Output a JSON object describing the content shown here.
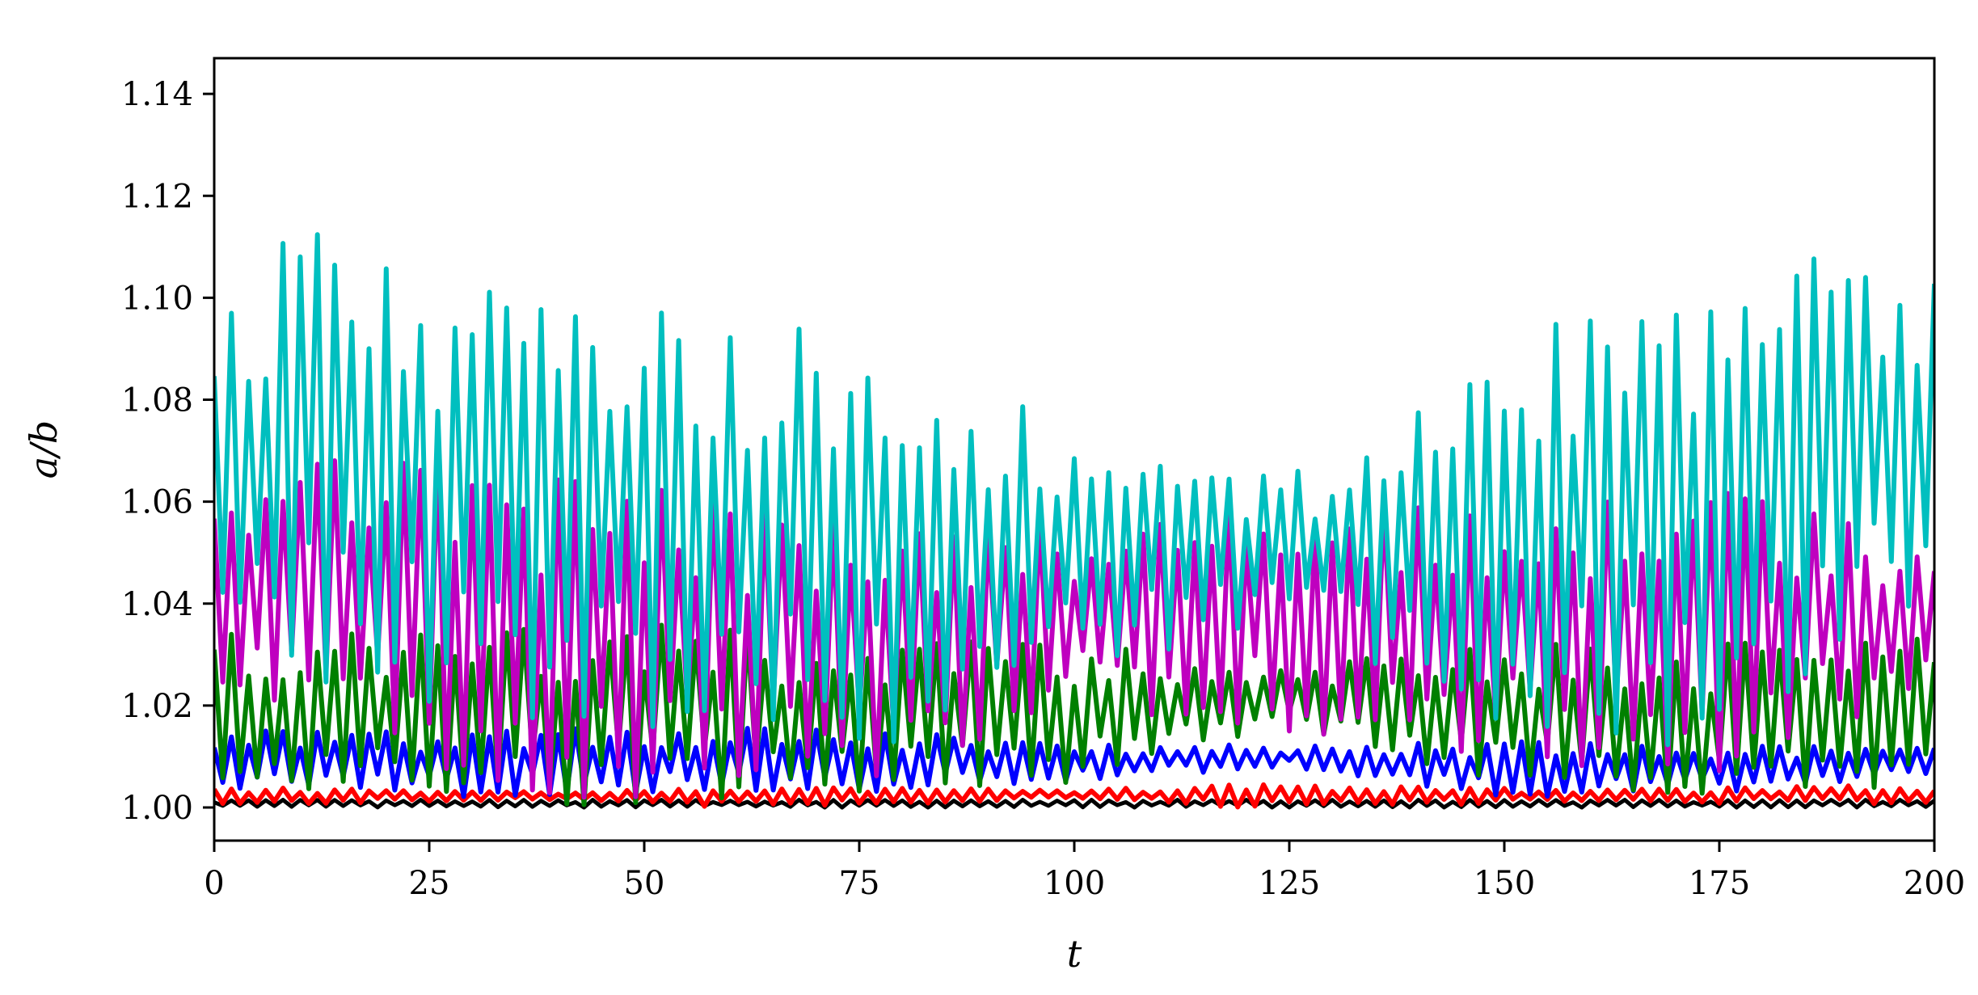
{
  "chart_data": {
    "type": "line",
    "title": "",
    "xlabel": "t",
    "ylabel": "a/b",
    "xlim": [
      0,
      200
    ],
    "ylim": [
      0.9935,
      1.147
    ],
    "xticks": [
      0,
      25,
      50,
      75,
      100,
      125,
      150,
      175,
      200
    ],
    "yticks": [
      1.0,
      1.02,
      1.04,
      1.06,
      1.08,
      1.1,
      1.12,
      1.14
    ],
    "xtick_labels": [
      "0",
      "25",
      "50",
      "75",
      "100",
      "125",
      "150",
      "175",
      "200"
    ],
    "ytick_labels": [
      "1.00",
      "1.02",
      "1.04",
      "1.06",
      "1.08",
      "1.10",
      "1.12",
      "1.14"
    ],
    "grid": false,
    "legend": "none",
    "sample_step": 1,
    "series": [
      {
        "color": "#000000",
        "envelope": [
          [
            0,
            1.0,
            1.0015
          ],
          [
            200,
            1.0,
            1.0015
          ]
        ]
      },
      {
        "color": "#ff0000",
        "envelope": [
          [
            0,
            1.0005,
            1.004
          ],
          [
            40,
            1.0015,
            1.003
          ],
          [
            60,
            1.0,
            1.004
          ],
          [
            100,
            1.0015,
            1.0035
          ],
          [
            120,
            1.0,
            1.0045
          ],
          [
            160,
            1.001,
            1.0035
          ],
          [
            200,
            1.0005,
            1.0045
          ]
        ]
      },
      {
        "color": "#0000ff",
        "envelope": [
          [
            0,
            1.004,
            1.015
          ],
          [
            25,
            1.002,
            1.015
          ],
          [
            50,
            1.003,
            1.016
          ],
          [
            75,
            1.003,
            1.015
          ],
          [
            100,
            1.005,
            1.013
          ],
          [
            125,
            1.008,
            1.012
          ],
          [
            150,
            1.002,
            1.013
          ],
          [
            175,
            1.003,
            1.012
          ],
          [
            200,
            1.006,
            1.012
          ]
        ]
      },
      {
        "color": "#008000",
        "envelope": [
          [
            0,
            1.005,
            1.035
          ],
          [
            25,
            1.002,
            1.035
          ],
          [
            50,
            1.0,
            1.036
          ],
          [
            75,
            1.003,
            1.033
          ],
          [
            100,
            1.005,
            1.032
          ],
          [
            125,
            1.015,
            1.028
          ],
          [
            150,
            1.005,
            1.032
          ],
          [
            175,
            1.002,
            1.032
          ],
          [
            200,
            1.002,
            1.034
          ]
        ]
      },
      {
        "color": "#bf00bf",
        "envelope": [
          [
            0,
            1.02,
            1.062
          ],
          [
            15,
            1.015,
            1.072
          ],
          [
            35,
            1.002,
            1.065
          ],
          [
            55,
            1.002,
            1.062
          ],
          [
            75,
            1.005,
            1.055
          ],
          [
            100,
            1.02,
            1.056
          ],
          [
            125,
            1.015,
            1.06
          ],
          [
            150,
            1.01,
            1.058
          ],
          [
            175,
            1.005,
            1.062
          ],
          [
            200,
            1.025,
            1.052
          ]
        ]
      },
      {
        "color": "#00bfbf",
        "envelope": [
          [
            0,
            1.035,
            1.096
          ],
          [
            12,
            1.025,
            1.118
          ],
          [
            25,
            1.02,
            1.105
          ],
          [
            50,
            1.015,
            1.1
          ],
          [
            75,
            1.01,
            1.092
          ],
          [
            100,
            1.028,
            1.075
          ],
          [
            125,
            1.035,
            1.065
          ],
          [
            150,
            1.015,
            1.09
          ],
          [
            175,
            1.01,
            1.11
          ],
          [
            200,
            1.04,
            1.105
          ]
        ]
      }
    ]
  }
}
